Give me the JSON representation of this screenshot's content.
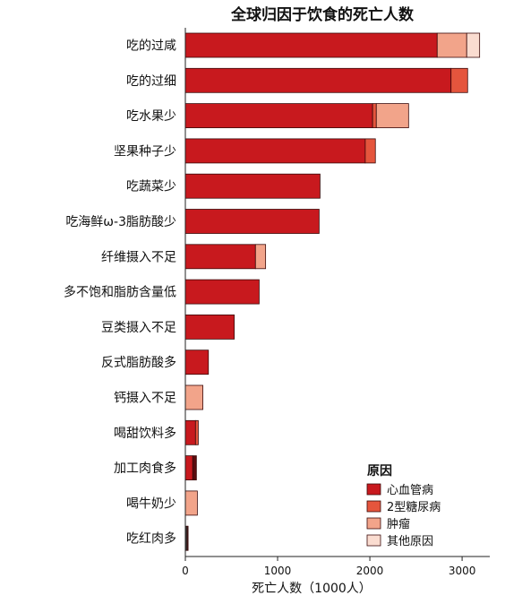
{
  "chart_data": {
    "type": "bar",
    "orientation": "horizontal",
    "stacked": true,
    "title": "全球归因于饮食的死亡人数",
    "xlabel": "死亡人数（1000人）",
    "ylabel": "",
    "xlim": [
      0,
      3300
    ],
    "xticks": [
      0,
      1000,
      2000,
      3000
    ],
    "grid": false,
    "legend_position": "bottom-right",
    "legend_title": "原因",
    "categories": [
      "吃的过咸",
      "吃的过细",
      "吃水果少",
      "坚果种子少",
      "吃蔬菜少",
      "吃海鲜ω-3脂肪酸少",
      "纤维摄入不足",
      "多不饱和脂肪含量低",
      "豆类摄入不足",
      "反式脂肪酸多",
      "钙摄入不足",
      "喝甜饮料多",
      "加工肉食多",
      "喝牛奶少",
      "吃红肉多"
    ],
    "series": [
      {
        "name": "心血管病",
        "color": "#c8191e",
        "values": [
          2730,
          2880,
          2030,
          1950,
          1460,
          1450,
          760,
          800,
          530,
          250,
          0,
          110,
          80,
          0,
          20
        ]
      },
      {
        "name": "2型糖尿病",
        "color": "#e5553d",
        "values": [
          0,
          180,
          40,
          110,
          0,
          0,
          0,
          0,
          0,
          0,
          0,
          30,
          40,
          0,
          10
        ]
      },
      {
        "name": "肿瘤",
        "color": "#f2a48a",
        "values": [
          320,
          0,
          350,
          0,
          0,
          0,
          110,
          0,
          0,
          0,
          190,
          0,
          0,
          130,
          0
        ]
      },
      {
        "name": "其他原因",
        "color": "#fadcd0",
        "values": [
          140,
          0,
          0,
          0,
          0,
          0,
          0,
          0,
          0,
          0,
          0,
          0,
          0,
          0,
          0
        ]
      }
    ],
    "segment_overrides": [
      {
        "category_index": 12,
        "series_index": 1,
        "color": "#5a0c0f"
      },
      {
        "category_index": 14,
        "series_index": 0,
        "color": "#3a3a3a"
      },
      {
        "category_index": 14,
        "series_index": 1,
        "color": "#3a3a3a"
      }
    ]
  }
}
